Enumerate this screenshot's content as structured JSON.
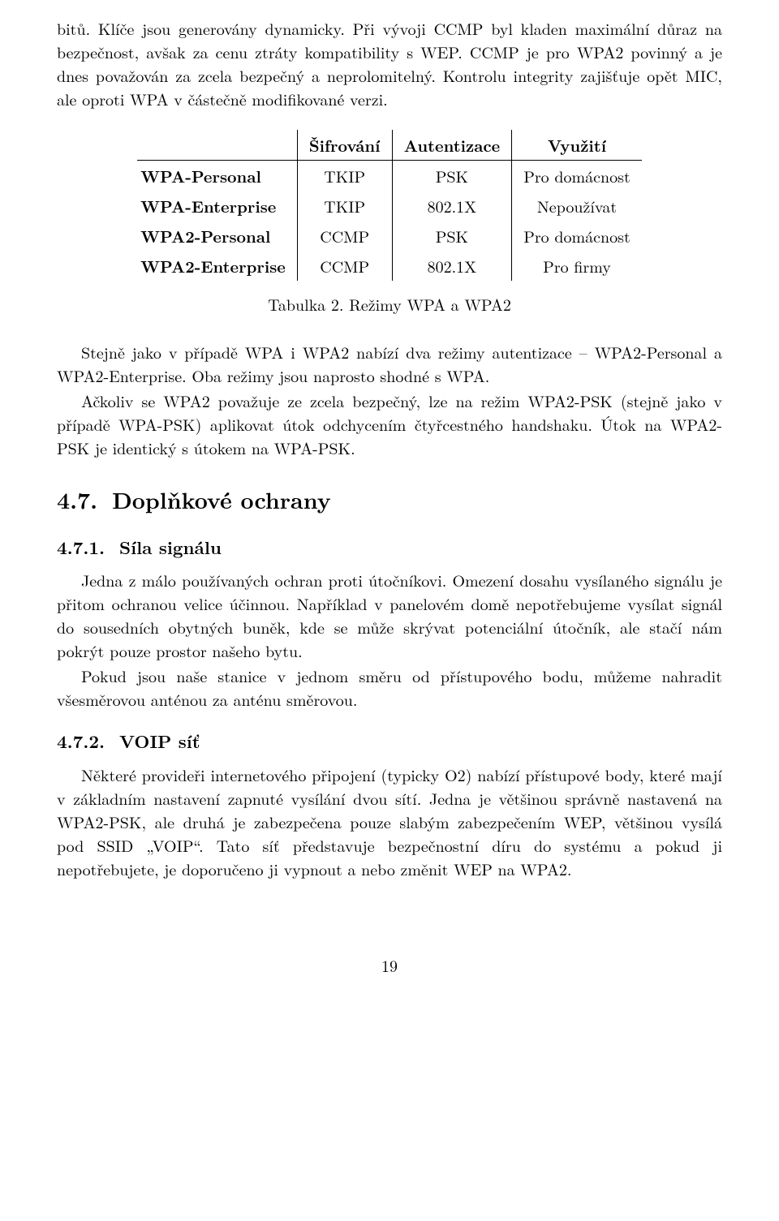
{
  "para1": "bitů. Klíče jsou generovány dynamicky. Při vývoji CCMP byl kladen maximální důraz na bezpečnost, avšak za cenu ztráty kompatibility s WEP. CCMP je pro WPA2 povinný a je dnes považován za zcela bezpečný a neprolomitelný. Kontrolu integrity zajišťuje opět MIC, ale oproti WPA v částečně modifikované verzi.",
  "table": {
    "headers": {
      "c1": "Šifrování",
      "c2": "Autentizace",
      "c3": "Využití"
    },
    "rows": [
      {
        "label": "WPA-Personal",
        "c1": "TKIP",
        "c2": "PSK",
        "c3": "Pro domácnost"
      },
      {
        "label": "WPA-Enterprise",
        "c1": "TKIP",
        "c2": "802.1X",
        "c3": "Nepoužívat"
      },
      {
        "label": "WPA2-Personal",
        "c1": "CCMP",
        "c2": "PSK",
        "c3": "Pro domácnost"
      },
      {
        "label": "WPA2-Enterprise",
        "c1": "CCMP",
        "c2": "802.1X",
        "c3": "Pro firmy"
      }
    ],
    "caption": "Tabulka 2. Režimy WPA a WPA2"
  },
  "para2": "Stejně jako v případě WPA i WPA2 nabízí dva režimy autentizace – WPA2-Personal a WPA2-Enterprise. Oba režimy jsou naprosto shodné s WPA.",
  "para3": "Ačkoliv se WPA2 považuje ze zcela bezpečný, lze na režim WPA2-PSK (stejně jako v případě WPA-PSK) aplikovat útok odchycením čtyřcestného handshaku. Útok na WPA2-PSK je identický s útokem na WPA-PSK.",
  "sec47": {
    "num": "4.7.",
    "title": "Doplňkové ochrany"
  },
  "sec471": {
    "num": "4.7.1.",
    "title": "Síla signálu"
  },
  "para471a": "Jedna z málo používaných ochran proti útočníkovi. Omezení dosahu vysílaného signálu je přitom ochranou velice účinnou. Například v panelovém domě nepotřebujeme vysílat signál do sousedních obytných buněk, kde se může skrývat potenciální útočník, ale stačí nám pokrýt pouze prostor našeho bytu.",
  "para471b": "Pokud jsou naše stanice v jednom směru od přístupového bodu, můžeme nahradit všesměrovou anténou za anténu směrovou.",
  "sec472": {
    "num": "4.7.2.",
    "title": "VOIP síť"
  },
  "para472": "Některé provideři internetového připojení (typicky O2) nabízí přístupové body, které mají v základním nastavení zapnuté vysílání dvou sítí. Jedna je většinou správně nastavená na WPA2-PSK, ale druhá je zabezpečena pouze slabým zabezpečením WEP, většinou vysílá pod SSID „VOIP“. Tato síť představuje bezpečnostní díru do systému a pokud ji nepotřebujete, je doporučeno ji vypnout a nebo změnit WEP na WPA2.",
  "pagenum": "19"
}
